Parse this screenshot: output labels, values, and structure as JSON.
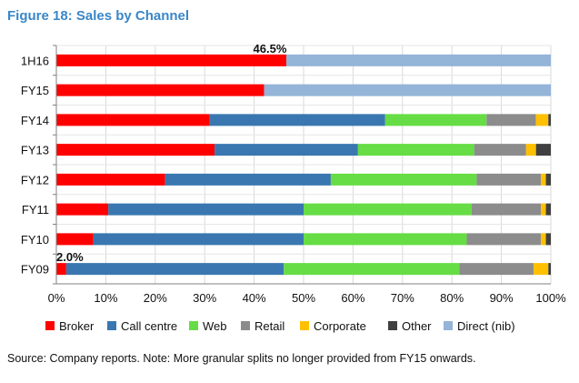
{
  "figure": {
    "title": "Figure 18: Sales by Channel",
    "source": "Source: Company reports. Note: More granular splits no longer provided from FY15 onwards."
  },
  "chart_data": {
    "type": "bar",
    "orientation": "horizontal",
    "stacked": true,
    "categories": [
      "1H16",
      "FY15",
      "FY14",
      "FY13",
      "FY12",
      "FY11",
      "FY10",
      "FY09"
    ],
    "series": [
      {
        "name": "Broker",
        "color": "#ff0000",
        "values": [
          46.5,
          42.0,
          31.0,
          32.0,
          22.0,
          10.5,
          7.5,
          2.0
        ]
      },
      {
        "name": "Call centre",
        "color": "#3a77b0",
        "values": [
          0,
          0,
          35.5,
          29.0,
          33.5,
          39.5,
          42.5,
          44.0
        ]
      },
      {
        "name": "Web",
        "color": "#66dd44",
        "values": [
          0,
          0,
          20.5,
          23.5,
          29.5,
          34.0,
          33.0,
          35.5
        ]
      },
      {
        "name": "Retail",
        "color": "#8c8c8c",
        "values": [
          0,
          0,
          10.0,
          10.5,
          13.0,
          14.0,
          15.0,
          15.0
        ]
      },
      {
        "name": "Corporate",
        "color": "#ffc000",
        "values": [
          0,
          0,
          2.5,
          2.0,
          1.0,
          1.0,
          1.0,
          3.0
        ]
      },
      {
        "name": "Other",
        "color": "#404040",
        "values": [
          0,
          0,
          0.5,
          3.0,
          1.0,
          1.0,
          1.0,
          0.5
        ]
      },
      {
        "name": "Direct (nib)",
        "color": "#94b4d8",
        "values": [
          53.5,
          58.0,
          0,
          0,
          0,
          0,
          0,
          0
        ]
      }
    ],
    "data_labels": [
      {
        "category": "1H16",
        "text": "46.5%"
      },
      {
        "category": "FY09",
        "text": "2.0%"
      }
    ],
    "xlim": [
      0,
      100
    ],
    "xticks": [
      "0%",
      "10%",
      "20%",
      "30%",
      "40%",
      "50%",
      "60%",
      "70%",
      "80%",
      "90%",
      "100%"
    ],
    "xlabel": "",
    "ylabel": "",
    "grid": true,
    "legend": "bottom"
  }
}
